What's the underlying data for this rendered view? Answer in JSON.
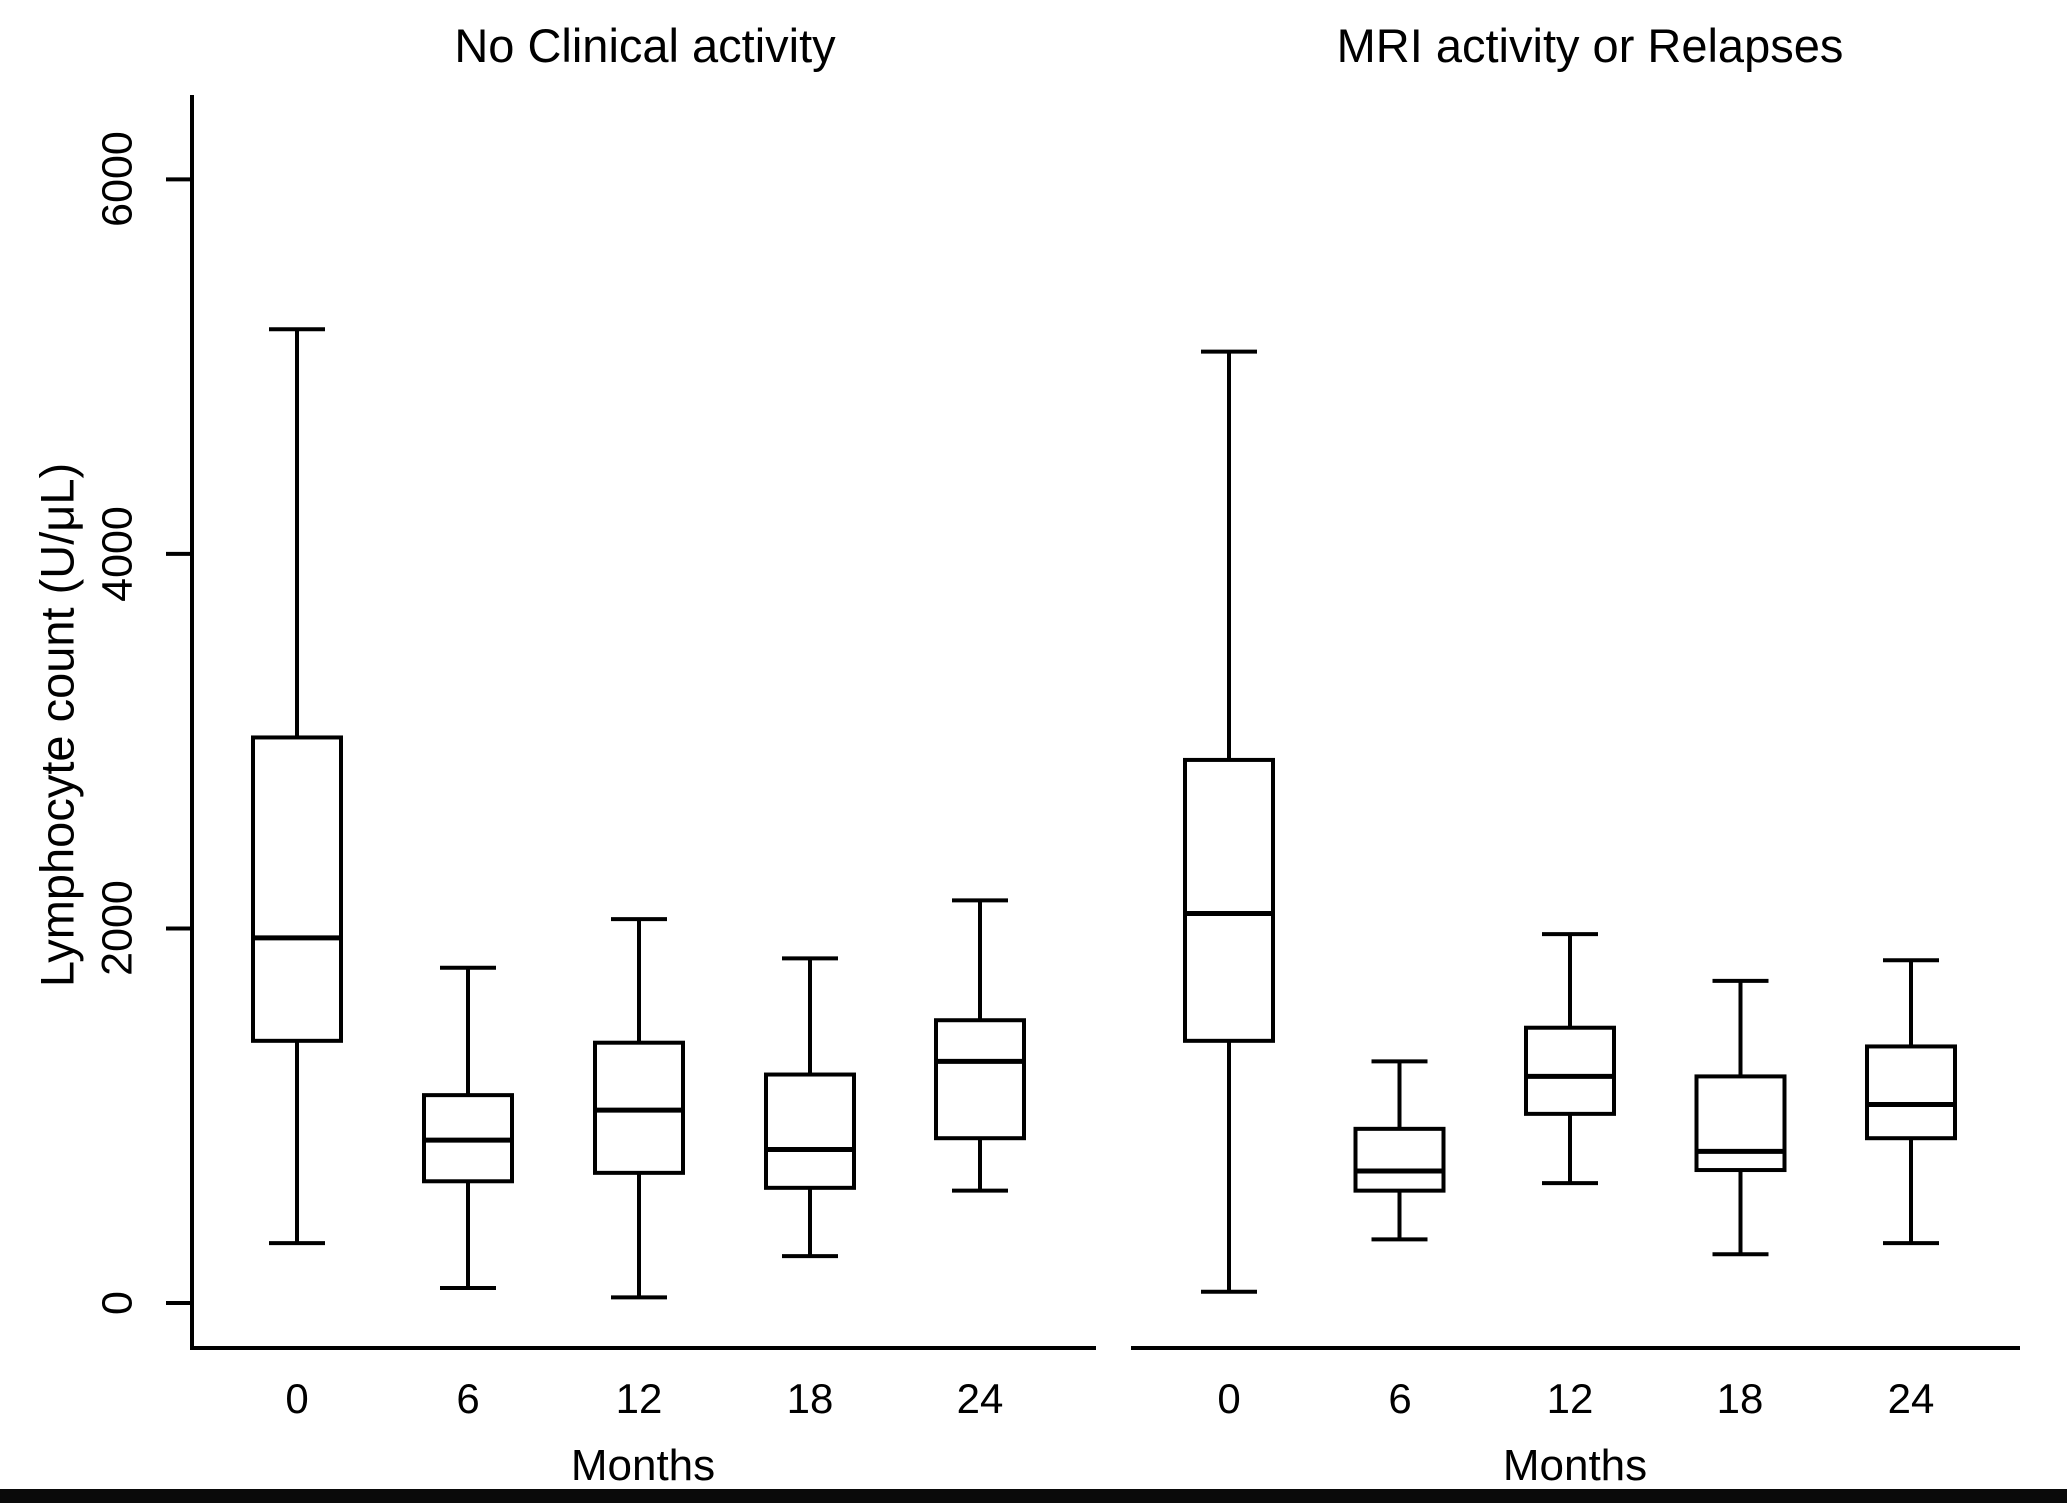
{
  "figure": {
    "background": "#ffffff",
    "bottom_bar_color": "#0a0a0a"
  },
  "chart_data": {
    "type": "boxplot",
    "y_axis_label": "Lymphocyte count (U/μL)",
    "x_axis_label": "Months",
    "y_ticks": [
      0,
      2000,
      4000,
      6000
    ],
    "y_tick_labels": [
      "0",
      "2000",
      "4000",
      "6000"
    ],
    "x_ticks": [
      "0",
      "6",
      "12",
      "18",
      "24"
    ],
    "y_range": [
      0,
      6450
    ],
    "grid": false,
    "line_color": "#000000",
    "panels": [
      {
        "title": "No Clinical activity",
        "slug": "no-clinical-activity",
        "categories": [
          "0",
          "6",
          "12",
          "18",
          "24"
        ],
        "boxes": [
          {
            "month": "0",
            "min": 320,
            "q1": 1400,
            "median": 1950,
            "q3": 3020,
            "max": 5200
          },
          {
            "month": "6",
            "min": 80,
            "q1": 650,
            "median": 870,
            "q3": 1110,
            "max": 1790
          },
          {
            "month": "12",
            "min": 30,
            "q1": 695,
            "median": 1030,
            "q3": 1390,
            "max": 2050
          },
          {
            "month": "18",
            "min": 250,
            "q1": 615,
            "median": 820,
            "q3": 1220,
            "max": 1840
          },
          {
            "month": "24",
            "min": 600,
            "q1": 880,
            "median": 1290,
            "q3": 1510,
            "max": 2150
          }
        ]
      },
      {
        "title": "MRI activity or Relapses",
        "slug": "mri-activity-or-relapses",
        "categories": [
          "0",
          "6",
          "12",
          "18",
          "24"
        ],
        "boxes": [
          {
            "month": "0",
            "min": 60,
            "q1": 1400,
            "median": 2080,
            "q3": 2900,
            "max": 5080
          },
          {
            "month": "6",
            "min": 340,
            "q1": 600,
            "median": 705,
            "q3": 930,
            "max": 1290
          },
          {
            "month": "12",
            "min": 640,
            "q1": 1010,
            "median": 1210,
            "q3": 1470,
            "max": 1970
          },
          {
            "month": "18",
            "min": 260,
            "q1": 710,
            "median": 810,
            "q3": 1210,
            "max": 1720
          },
          {
            "month": "24",
            "min": 320,
            "q1": 880,
            "median": 1060,
            "q3": 1370,
            "max": 1830
          }
        ]
      }
    ]
  }
}
